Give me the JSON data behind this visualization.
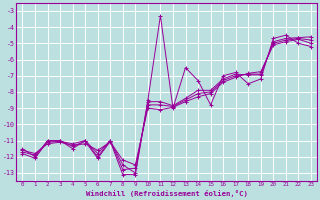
{
  "xlabel": "Windchill (Refroidissement éolien,°C)",
  "bg_color": "#bce0e0",
  "grid_color": "#ffffff",
  "line_color": "#990099",
  "xlim": [
    -0.5,
    23.5
  ],
  "ylim": [
    -13.5,
    -2.5
  ],
  "xticks": [
    0,
    1,
    2,
    3,
    4,
    5,
    6,
    7,
    8,
    9,
    10,
    11,
    12,
    13,
    14,
    15,
    16,
    17,
    18,
    19,
    20,
    21,
    22,
    23
  ],
  "yticks": [
    -13,
    -12,
    -11,
    -10,
    -9,
    -8,
    -7,
    -6,
    -5,
    -4,
    -3
  ],
  "series1_x": [
    0,
    1,
    2,
    3,
    4,
    5,
    6,
    7,
    8,
    9,
    10,
    11,
    12,
    13,
    14,
    15,
    16,
    17,
    18,
    19,
    20,
    21,
    22,
    23
  ],
  "series1_y": [
    -11.5,
    -12.0,
    -11.0,
    -11.0,
    -11.5,
    -11.0,
    -12.0,
    -11.0,
    -12.5,
    -13.0,
    -8.5,
    -3.3,
    -9.0,
    -6.5,
    -7.3,
    -8.8,
    -7.0,
    -6.8,
    -7.5,
    -7.2,
    -4.7,
    -4.5,
    -5.0,
    -5.2
  ],
  "series2_x": [
    0,
    1,
    2,
    3,
    4,
    5,
    6,
    7,
    8,
    9,
    10,
    11,
    12,
    13,
    14,
    15,
    16,
    17,
    18,
    19,
    20,
    21,
    22,
    23
  ],
  "series2_y": [
    -11.7,
    -11.9,
    -11.1,
    -11.05,
    -11.2,
    -11.0,
    -11.8,
    -11.0,
    -12.8,
    -12.7,
    -8.8,
    -8.8,
    -8.9,
    -8.5,
    -8.1,
    -8.0,
    -7.3,
    -7.0,
    -6.9,
    -6.9,
    -5.0,
    -4.8,
    -4.7,
    -4.8
  ],
  "series3_x": [
    0,
    1,
    2,
    3,
    4,
    5,
    6,
    7,
    8,
    9,
    10,
    11,
    12,
    13,
    14,
    15,
    16,
    17,
    18,
    19,
    20,
    21,
    22,
    23
  ],
  "series3_y": [
    -11.6,
    -11.8,
    -11.2,
    -11.1,
    -11.3,
    -11.2,
    -11.6,
    -11.1,
    -12.2,
    -12.5,
    -9.0,
    -9.1,
    -8.95,
    -8.6,
    -8.3,
    -8.1,
    -7.4,
    -7.1,
    -6.85,
    -6.75,
    -5.1,
    -4.9,
    -4.75,
    -5.0
  ],
  "series4_x": [
    0,
    1,
    2,
    3,
    4,
    5,
    6,
    7,
    8,
    9,
    10,
    11,
    12,
    13,
    14,
    15,
    16,
    17,
    18,
    19,
    20,
    21,
    22,
    23
  ],
  "series4_y": [
    -11.8,
    -12.1,
    -11.05,
    -11.0,
    -11.35,
    -11.05,
    -12.1,
    -11.05,
    -13.1,
    -13.1,
    -8.6,
    -8.6,
    -8.85,
    -8.4,
    -7.9,
    -7.9,
    -7.2,
    -6.9,
    -6.95,
    -6.95,
    -4.9,
    -4.7,
    -4.65,
    -4.6
  ]
}
